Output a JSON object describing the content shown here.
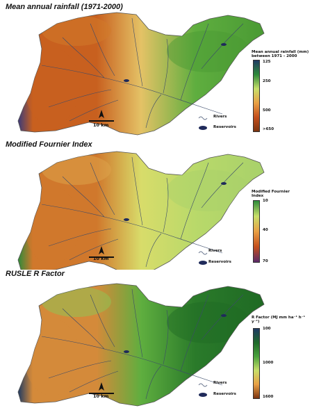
{
  "panels": [
    {
      "title": "Mean annual rainfall (1971-2000)",
      "legend_title": "Mean annual rainfall (mm) between 1971 - 2000",
      "ticks": [
        "125",
        "250",
        "500",
        ">650"
      ],
      "ramp": [
        "#1f3a63",
        "#2e8a3a",
        "#c8df6a",
        "#e9a045",
        "#c44f1c",
        "#7b3410"
      ],
      "map_scheme": "rainfall"
    },
    {
      "title": "Modified Fournier Index",
      "legend_title": "Modified Fournier Index",
      "ticks": [
        "10",
        "40",
        "70"
      ],
      "ramp": [
        "#2e8a3a",
        "#c8df6a",
        "#e9a045",
        "#c44f1c",
        "#5a2a6a"
      ],
      "map_scheme": "fournier"
    },
    {
      "title": "RUSLE R Factor",
      "legend_title": "R Factor (MJ mm ha⁻¹ h⁻¹ y⁻¹)",
      "ticks": [
        "100",
        "1000",
        "1600"
      ],
      "ramp": [
        "#1f3a63",
        "#1f6a2a",
        "#4aa23c",
        "#c8df6a",
        "#e9a045",
        "#7b3410"
      ],
      "map_scheme": "rfactor"
    }
  ],
  "map_key": {
    "rivers_label": "Rivers",
    "reservoirs_label": "Reservoirs",
    "scale_label": "10 km",
    "north_label": "N"
  },
  "icons": {
    "north_arrow": "north-arrow-icon",
    "river_symbol": "river-line-icon",
    "reservoir_symbol": "reservoir-icon"
  },
  "colors": {
    "river": "#3a4a6a",
    "reservoir": "#1f2a5a",
    "outline": "#555555"
  }
}
